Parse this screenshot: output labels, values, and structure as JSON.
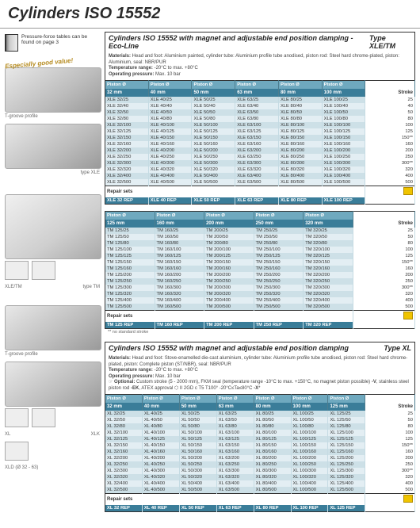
{
  "page_title": "Cylinders ISO 15552",
  "pressure_note": "Pressure-force tables can be found on page 3",
  "good_value": "Especially good value!",
  "captions": {
    "tgroove": "T-groove profile",
    "type_xle": "type XLE",
    "xletm": "XLE/TM",
    "type_tm": "type TM",
    "xl": "XL",
    "xlk": "XLK",
    "xld": "XLD (Ø 32 - 63)"
  },
  "section1": {
    "title": "Cylinders ISO 15552 with magnet and adjustable end position damping - Eco-Line",
    "type": "Type XLE/TM",
    "meta_html": "<b>Materials:</b> Head and foot: Aluminium painted, cylinder tube: Aluminium profile tube anodised, piston rod: Steel hard chrome-plated, piston: Aluminium, seal: NBR/PUR<br><b>Temperature range:</b> -20°C to max. +80°C<br><b>Operating pressure:</b> Max. 10 bar",
    "tableA": {
      "head_label": "Piston Ø",
      "stroke_label": "Stroke",
      "diam_labels": [
        "32 mm",
        "40 mm",
        "50 mm",
        "63 mm",
        "80 mm",
        "100 mm"
      ],
      "rows": [
        {
          "c": [
            "XLE 32/25",
            "XLE 40/25",
            "XLE 50/25",
            "XLE 63/25",
            "XLE 80/25",
            "XLE 100/25"
          ],
          "s": "25"
        },
        {
          "c": [
            "XLE 32/40",
            "XLE 40/40",
            "XLE 50/40",
            "XLE 63/40",
            "XLE 80/40",
            "XLE 100/40"
          ],
          "s": "40"
        },
        {
          "c": [
            "XLE 32/50",
            "XLE 40/50",
            "XLE 50/50",
            "XLE 63/50",
            "XLE 80/50",
            "XLE 100/50"
          ],
          "s": "50"
        },
        {
          "c": [
            "XLE 32/80",
            "XLE 40/80",
            "XLE 50/80",
            "XLE 63/80",
            "XLE 80/80",
            "XLE 100/80"
          ],
          "s": "80"
        },
        {
          "c": [
            "XLE 32/100",
            "XLE 40/100",
            "XLE 50/100",
            "XLE 63/100",
            "XLE 80/100",
            "XLE 100/100"
          ],
          "s": "100"
        },
        {
          "c": [
            "XLE 32/125",
            "XLE 40/125",
            "XLE 50/125",
            "XLE 63/125",
            "XLE 80/125",
            "XLE 100/125"
          ],
          "s": "125"
        },
        {
          "c": [
            "XLE 32/150",
            "XLE 40/150",
            "XLE 50/150",
            "XLE 63/150",
            "XLE 80/150",
            "XLE 100/150"
          ],
          "s": "150**"
        },
        {
          "c": [
            "XLE 32/160",
            "XLE 40/160",
            "XLE 50/160",
            "XLE 63/160",
            "XLE 80/160",
            "XLE 100/160"
          ],
          "s": "160"
        },
        {
          "c": [
            "XLE 32/200",
            "XLE 40/200",
            "XLE 50/200",
            "XLE 63/200",
            "XLE 80/200",
            "XLE 100/200"
          ],
          "s": "200"
        },
        {
          "c": [
            "XLE 32/250",
            "XLE 40/250",
            "XLE 50/250",
            "XLE 63/250",
            "XLE 80/250",
            "XLE 100/250"
          ],
          "s": "250"
        },
        {
          "c": [
            "XLE 32/300",
            "XLE 40/300",
            "XLE 50/300",
            "XLE 63/300",
            "XLE 80/300",
            "XLE 100/300"
          ],
          "s": "300**"
        },
        {
          "c": [
            "XLE 32/320",
            "XLE 40/320",
            "XLE 50/320",
            "XLE 63/320",
            "XLE 80/320",
            "XLE 100/320"
          ],
          "s": "320"
        },
        {
          "c": [
            "XLE 32/400",
            "XLE 40/400",
            "XLE 50/400",
            "XLE 63/400",
            "XLE 80/400",
            "XLE 100/400"
          ],
          "s": "400"
        },
        {
          "c": [
            "XLE 32/500",
            "XLE 40/500",
            "XLE 50/500",
            "XLE 63/500",
            "XLE 80/500",
            "XLE 100/500"
          ],
          "s": "500"
        }
      ],
      "repair_label": "Repair sets",
      "repair": [
        "XLE 32 REP",
        "XLE 40 REP",
        "XLE 50 REP",
        "XLE 63 REP",
        "XLE 80 REP",
        "XLE 100 REP"
      ]
    },
    "tableB": {
      "head_label": "Piston Ø",
      "stroke_label": "Stroke",
      "diam_labels": [
        "125 mm",
        "160 mm",
        "200 mm",
        "250 mm",
        "320 mm"
      ],
      "rows": [
        {
          "c": [
            "TM 125/25",
            "TM 160/25",
            "TM 200/25",
            "TM 250/25",
            "TM 320/25"
          ],
          "s": "25"
        },
        {
          "c": [
            "TM 125/50",
            "TM 160/50",
            "TM 200/50",
            "TM 250/50",
            "TM 320/50"
          ],
          "s": "50"
        },
        {
          "c": [
            "TM 125/80",
            "TM 160/80",
            "TM 200/80",
            "TM 250/80",
            "TM 320/80"
          ],
          "s": "80"
        },
        {
          "c": [
            "TM 125/100",
            "TM 160/100",
            "TM 200/100",
            "TM 250/100",
            "TM 320/100"
          ],
          "s": "100"
        },
        {
          "c": [
            "TM 125/125",
            "TM 160/125",
            "TM 200/125",
            "TM 250/125",
            "TM 320/125"
          ],
          "s": "125"
        },
        {
          "c": [
            "TM 125/150",
            "TM 160/150",
            "TM 200/150",
            "TM 250/150",
            "TM 320/150"
          ],
          "s": "150**"
        },
        {
          "c": [
            "TM 125/160",
            "TM 160/160",
            "TM 200/160",
            "TM 250/160",
            "TM 320/160"
          ],
          "s": "160"
        },
        {
          "c": [
            "TM 125/200",
            "TM 160/200",
            "TM 200/200",
            "TM 250/200",
            "TM 320/200"
          ],
          "s": "200"
        },
        {
          "c": [
            "TM 125/250",
            "TM 160/250",
            "TM 200/250",
            "TM 250/250",
            "TM 320/250"
          ],
          "s": "250"
        },
        {
          "c": [
            "TM 125/300",
            "TM 160/300",
            "TM 200/300",
            "TM 250/300",
            "TM 320/300"
          ],
          "s": "300**"
        },
        {
          "c": [
            "TM 125/320",
            "TM 160/320",
            "TM 200/320",
            "TM 250/320",
            "TM 320/320"
          ],
          "s": "320"
        },
        {
          "c": [
            "TM 125/400",
            "TM 160/400",
            "TM 200/400",
            "TM 250/400",
            "TM 320/400"
          ],
          "s": "400"
        },
        {
          "c": [
            "TM 125/500",
            "TM 160/500",
            "TM 200/500",
            "TM 250/500",
            "TM 320/500"
          ],
          "s": "500"
        }
      ],
      "repair_label": "Repair sets",
      "repair": [
        "TM 125 REP",
        "TM 160 REP",
        "TM 200 REP",
        "TM 250 REP",
        "TM 320 REP"
      ],
      "footnote": "** no standard stroke"
    }
  },
  "section2": {
    "title": "Cylinders ISO 15552 with magnet and adjustable end position damping",
    "type": "Type XL",
    "meta_html": "<b>Materials:</b> Head and foot: Stove-enamelled die-cast aluminium, cylinder tube: Aluminium profile tube anodised, piston rod: Steel hard chrome-plated, piston: Complete piston (ST/NBR), seal: NBR/PUR<br><b>Temperature range:</b> -20°C to max. +80°C<br><b>Operating pressure:</b> Max. 10 bar<br>☞ <b>Optional:</b> Custom stroke (5 - 2000 mm), FKM seal (temperature range -10°C to max. +150°C, no magnet piston possible) <b>-V</b>, stainless steel piston rod <b>-EK</b>, ATEX approval ⬡ II 2GD c T5 T100° -20°C≤Ta≤80°C <b>-X</b>*",
    "table": {
      "head_label": "Piston Ø",
      "stroke_label": "Stroke",
      "diam_labels": [
        "32 mm",
        "40 mm",
        "50 mm",
        "63 mm",
        "80 mm",
        "100 mm",
        "125 mm"
      ],
      "rows": [
        {
          "c": [
            "XL 32/25",
            "XL 40/25",
            "XL 50/25",
            "XL 63/25",
            "XL 80/25",
            "XL 100/25",
            "XL 125/25"
          ],
          "s": "25"
        },
        {
          "c": [
            "XL 32/50",
            "XL 40/50",
            "XL 50/50",
            "XL 63/50",
            "XL 80/50",
            "XL 100/50",
            "XL 125/50"
          ],
          "s": "50"
        },
        {
          "c": [
            "XL 32/80",
            "XL 40/80",
            "XL 50/80",
            "XL 63/80",
            "XL 80/80",
            "XL 100/80",
            "XL 125/80"
          ],
          "s": "80"
        },
        {
          "c": [
            "XL 32/100",
            "XL 40/100",
            "XL 50/100",
            "XL 63/100",
            "XL 80/100",
            "XL 100/100",
            "XL 125/100"
          ],
          "s": "100"
        },
        {
          "c": [
            "XL 32/125",
            "XL 40/125",
            "XL 50/125",
            "XL 63/125",
            "XL 80/125",
            "XL 100/125",
            "XL 125/125"
          ],
          "s": "125"
        },
        {
          "c": [
            "XL 32/150",
            "XL 40/150",
            "XL 50/150",
            "XL 63/150",
            "XL 80/150",
            "XL 100/150",
            "XL 125/150"
          ],
          "s": "150**"
        },
        {
          "c": [
            "XL 32/160",
            "XL 40/160",
            "XL 50/160",
            "XL 63/160",
            "XL 80/160",
            "XL 100/160",
            "XL 125/160"
          ],
          "s": "160"
        },
        {
          "c": [
            "XL 32/200",
            "XL 40/200",
            "XL 50/200",
            "XL 63/200",
            "XL 80/200",
            "XL 100/200",
            "XL 125/200"
          ],
          "s": "200"
        },
        {
          "c": [
            "XL 32/250",
            "XL 40/250",
            "XL 50/250",
            "XL 63/250",
            "XL 80/250",
            "XL 100/250",
            "XL 125/250"
          ],
          "s": "250"
        },
        {
          "c": [
            "XL 32/300",
            "XL 40/300",
            "XL 50/300",
            "XL 63/300",
            "XL 80/300",
            "XL 100/300",
            "XL 125/300"
          ],
          "s": "300**"
        },
        {
          "c": [
            "XL 32/320",
            "XL 40/320",
            "XL 50/320",
            "XL 63/320",
            "XL 80/320",
            "XL 100/320",
            "XL 125/320"
          ],
          "s": "320"
        },
        {
          "c": [
            "XL 32/400",
            "XL 40/400",
            "XL 50/400",
            "XL 63/400",
            "XL 80/400",
            "XL 100/400",
            "XL 125/400"
          ],
          "s": "400"
        },
        {
          "c": [
            "XL 32/500",
            "XL 40/500",
            "XL 50/500",
            "XL 63/500",
            "XL 80/500",
            "XL 100/500",
            "XL 125/500"
          ],
          "s": "500"
        }
      ],
      "repair_label": "Repair sets",
      "repair": [
        "XL 32 REP",
        "XL 40 REP",
        "XL 50 REP",
        "XL 63 REP",
        "XL 80 REP",
        "XL 100 REP",
        "XL 125 REP"
      ]
    }
  }
}
